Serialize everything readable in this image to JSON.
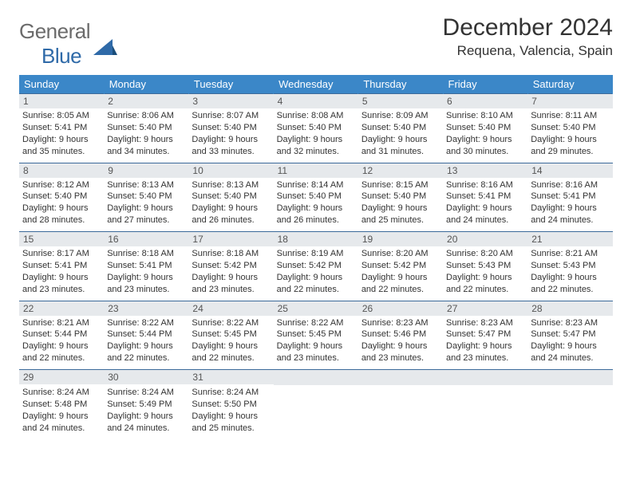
{
  "brand": {
    "word1": "General",
    "word2": "Blue"
  },
  "title": "December 2024",
  "location": "Requena, Valencia, Spain",
  "colors": {
    "header_bg": "#3b87c8",
    "header_text": "#ffffff",
    "border": "#3b6a9a",
    "daynum_bg": "#e6e9ec",
    "logo_gray": "#6b6b6b",
    "logo_blue": "#2f6aa8"
  },
  "weekdays": [
    "Sunday",
    "Monday",
    "Tuesday",
    "Wednesday",
    "Thursday",
    "Friday",
    "Saturday"
  ],
  "weeks": [
    [
      {
        "n": "1",
        "sr": "8:05 AM",
        "ss": "5:41 PM",
        "dl": "9 hours and 35 minutes."
      },
      {
        "n": "2",
        "sr": "8:06 AM",
        "ss": "5:40 PM",
        "dl": "9 hours and 34 minutes."
      },
      {
        "n": "3",
        "sr": "8:07 AM",
        "ss": "5:40 PM",
        "dl": "9 hours and 33 minutes."
      },
      {
        "n": "4",
        "sr": "8:08 AM",
        "ss": "5:40 PM",
        "dl": "9 hours and 32 minutes."
      },
      {
        "n": "5",
        "sr": "8:09 AM",
        "ss": "5:40 PM",
        "dl": "9 hours and 31 minutes."
      },
      {
        "n": "6",
        "sr": "8:10 AM",
        "ss": "5:40 PM",
        "dl": "9 hours and 30 minutes."
      },
      {
        "n": "7",
        "sr": "8:11 AM",
        "ss": "5:40 PM",
        "dl": "9 hours and 29 minutes."
      }
    ],
    [
      {
        "n": "8",
        "sr": "8:12 AM",
        "ss": "5:40 PM",
        "dl": "9 hours and 28 minutes."
      },
      {
        "n": "9",
        "sr": "8:13 AM",
        "ss": "5:40 PM",
        "dl": "9 hours and 27 minutes."
      },
      {
        "n": "10",
        "sr": "8:13 AM",
        "ss": "5:40 PM",
        "dl": "9 hours and 26 minutes."
      },
      {
        "n": "11",
        "sr": "8:14 AM",
        "ss": "5:40 PM",
        "dl": "9 hours and 26 minutes."
      },
      {
        "n": "12",
        "sr": "8:15 AM",
        "ss": "5:40 PM",
        "dl": "9 hours and 25 minutes."
      },
      {
        "n": "13",
        "sr": "8:16 AM",
        "ss": "5:41 PM",
        "dl": "9 hours and 24 minutes."
      },
      {
        "n": "14",
        "sr": "8:16 AM",
        "ss": "5:41 PM",
        "dl": "9 hours and 24 minutes."
      }
    ],
    [
      {
        "n": "15",
        "sr": "8:17 AM",
        "ss": "5:41 PM",
        "dl": "9 hours and 23 minutes."
      },
      {
        "n": "16",
        "sr": "8:18 AM",
        "ss": "5:41 PM",
        "dl": "9 hours and 23 minutes."
      },
      {
        "n": "17",
        "sr": "8:18 AM",
        "ss": "5:42 PM",
        "dl": "9 hours and 23 minutes."
      },
      {
        "n": "18",
        "sr": "8:19 AM",
        "ss": "5:42 PM",
        "dl": "9 hours and 22 minutes."
      },
      {
        "n": "19",
        "sr": "8:20 AM",
        "ss": "5:42 PM",
        "dl": "9 hours and 22 minutes."
      },
      {
        "n": "20",
        "sr": "8:20 AM",
        "ss": "5:43 PM",
        "dl": "9 hours and 22 minutes."
      },
      {
        "n": "21",
        "sr": "8:21 AM",
        "ss": "5:43 PM",
        "dl": "9 hours and 22 minutes."
      }
    ],
    [
      {
        "n": "22",
        "sr": "8:21 AM",
        "ss": "5:44 PM",
        "dl": "9 hours and 22 minutes."
      },
      {
        "n": "23",
        "sr": "8:22 AM",
        "ss": "5:44 PM",
        "dl": "9 hours and 22 minutes."
      },
      {
        "n": "24",
        "sr": "8:22 AM",
        "ss": "5:45 PM",
        "dl": "9 hours and 22 minutes."
      },
      {
        "n": "25",
        "sr": "8:22 AM",
        "ss": "5:45 PM",
        "dl": "9 hours and 23 minutes."
      },
      {
        "n": "26",
        "sr": "8:23 AM",
        "ss": "5:46 PM",
        "dl": "9 hours and 23 minutes."
      },
      {
        "n": "27",
        "sr": "8:23 AM",
        "ss": "5:47 PM",
        "dl": "9 hours and 23 minutes."
      },
      {
        "n": "28",
        "sr": "8:23 AM",
        "ss": "5:47 PM",
        "dl": "9 hours and 24 minutes."
      }
    ],
    [
      {
        "n": "29",
        "sr": "8:24 AM",
        "ss": "5:48 PM",
        "dl": "9 hours and 24 minutes."
      },
      {
        "n": "30",
        "sr": "8:24 AM",
        "ss": "5:49 PM",
        "dl": "9 hours and 24 minutes."
      },
      {
        "n": "31",
        "sr": "8:24 AM",
        "ss": "5:50 PM",
        "dl": "9 hours and 25 minutes."
      },
      null,
      null,
      null,
      null
    ]
  ],
  "labels": {
    "sunrise": "Sunrise:",
    "sunset": "Sunset:",
    "daylight": "Daylight:"
  }
}
